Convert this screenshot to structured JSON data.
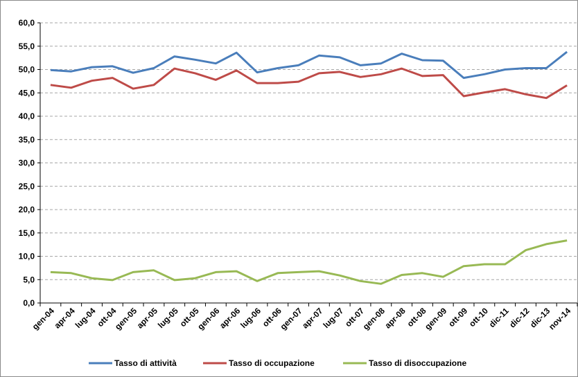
{
  "chart_data": {
    "type": "line",
    "categories": [
      "gen-04",
      "apr-04",
      "lug-04",
      "ott-04",
      "gen-05",
      "apr-05",
      "lug-05",
      "ott-05",
      "gen-06",
      "apr-06",
      "lug-06",
      "ott-06",
      "gen-07",
      "apr-07",
      "lug-07",
      "ott-07",
      "gen-08",
      "apr-08",
      "ott-08",
      "gen-09",
      "ott-09",
      "ott-10",
      "dic-11",
      "dic-12",
      "dic-13",
      "nov-14"
    ],
    "series": [
      {
        "name": "Tasso di attività",
        "color": "#4a7ebb",
        "values": [
          49.9,
          49.6,
          50.5,
          50.7,
          49.3,
          50.3,
          52.8,
          52.1,
          51.3,
          53.6,
          49.4,
          50.3,
          50.9,
          53.0,
          52.6,
          50.9,
          51.3,
          53.4,
          52.0,
          51.9,
          48.2,
          49.0,
          50.0,
          50.3,
          50.3,
          53.8
        ]
      },
      {
        "name": "Tasso di occupazione",
        "color": "#be4b48",
        "values": [
          46.7,
          46.1,
          47.6,
          48.2,
          45.9,
          46.7,
          50.2,
          49.2,
          47.8,
          49.8,
          47.1,
          47.1,
          47.4,
          49.2,
          49.5,
          48.4,
          49.0,
          50.2,
          48.6,
          48.8,
          44.3,
          45.1,
          45.8,
          44.7,
          43.9,
          46.6
        ]
      },
      {
        "name": "Tasso di disoccupazione",
        "color": "#98b954",
        "values": [
          6.6,
          6.4,
          5.3,
          4.9,
          6.6,
          7.0,
          4.9,
          5.3,
          6.6,
          6.8,
          4.7,
          6.4,
          6.6,
          6.8,
          5.9,
          4.7,
          4.1,
          6.0,
          6.4,
          5.6,
          7.9,
          8.3,
          8.3,
          11.3,
          12.6,
          13.4
        ]
      }
    ],
    "ylim": [
      0,
      60
    ],
    "yticks": [
      {
        "value": 0,
        "label": "0,0"
      },
      {
        "value": 5,
        "label": "5,0"
      },
      {
        "value": 10,
        "label": "10,0"
      },
      {
        "value": 15,
        "label": "15,0"
      },
      {
        "value": 20,
        "label": "20,0"
      },
      {
        "value": 25,
        "label": "25,0"
      },
      {
        "value": 30,
        "label": "30,0"
      },
      {
        "value": 35,
        "label": "35,0"
      },
      {
        "value": 40,
        "label": "40,0"
      },
      {
        "value": 45,
        "label": "45,0"
      },
      {
        "value": 50,
        "label": "50,0"
      },
      {
        "value": 55,
        "label": "55,0"
      },
      {
        "value": 60,
        "label": "60,0"
      }
    ],
    "grid": true,
    "legend": "bottom"
  }
}
